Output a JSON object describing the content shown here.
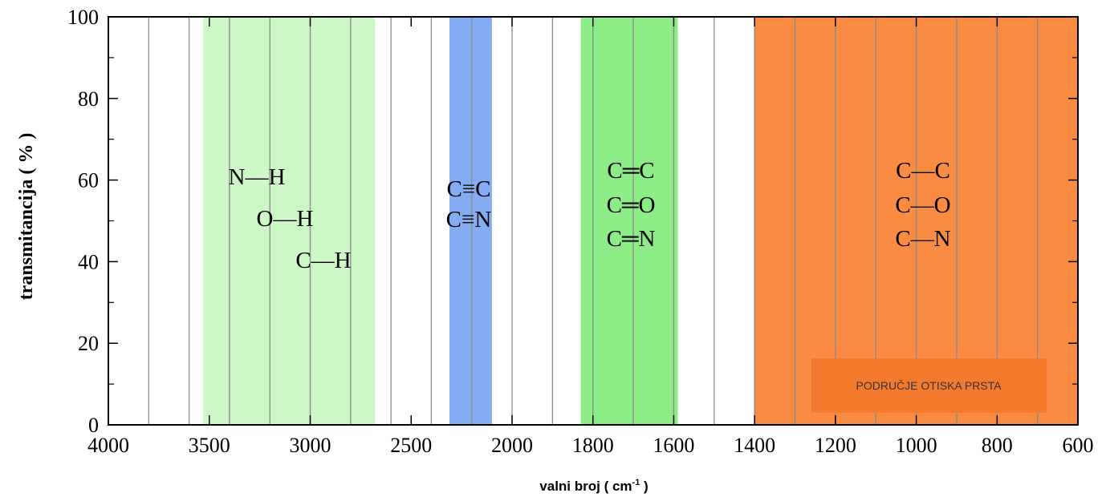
{
  "chart_data": {
    "type": "area",
    "title": "",
    "xlabel": "valni broj ( cm",
    "xlabel_sup": "-1",
    "xlabel_end": " )",
    "ylabel": "transmitancija ( % )",
    "ylim": [
      0,
      100
    ],
    "y_ticks": [
      0,
      20,
      40,
      60,
      80,
      100
    ],
    "x_ticks": [
      {
        "value": 4000,
        "label": "4000"
      },
      {
        "value": 3500,
        "label": "3500"
      },
      {
        "value": 3000,
        "label": "3000"
      },
      {
        "value": 2500,
        "label": "2500"
      },
      {
        "value": 2000,
        "label": "2000"
      },
      {
        "value": 1800,
        "label": "1800"
      },
      {
        "value": 1600,
        "label": "1600"
      },
      {
        "value": 1400,
        "label": "1400"
      },
      {
        "value": 1200,
        "label": "1200"
      },
      {
        "value": 1000,
        "label": "1000"
      },
      {
        "value": 800,
        "label": "800"
      },
      {
        "value": 600,
        "label": "600"
      }
    ],
    "gridlines": [
      3800,
      3600,
      3400,
      3200,
      3000,
      2800,
      2600,
      2400,
      2200,
      2000,
      1900,
      1800,
      1700,
      1600,
      1500,
      1400,
      1300,
      1200,
      1100,
      1000,
      900,
      800,
      700
    ],
    "grid": true,
    "regions": [
      {
        "name": "single-bonds-to-hydrogen",
        "from": 3530,
        "to": 2680,
        "color": "#cdf7c6",
        "labels": [
          "N—H",
          "O—H",
          "C—H"
        ]
      },
      {
        "name": "triple-bonds",
        "from": 2310,
        "to": 2100,
        "color": "#84acf2",
        "labels": [
          "C≡C",
          "C≡N"
        ]
      },
      {
        "name": "double-bonds",
        "from": 1830,
        "to": 1590,
        "color": "#8cec86",
        "labels": [
          "C═C",
          "C═O",
          "C═N"
        ]
      },
      {
        "name": "fingerprint-region",
        "from": 1400,
        "to": 600,
        "color": "#f98c42",
        "labels": [
          "C—C",
          "C—O",
          "C—N"
        ]
      }
    ],
    "annotation": {
      "text": "PODRUČJE OTISKA PRSTA",
      "color": "#f47a2e"
    }
  }
}
